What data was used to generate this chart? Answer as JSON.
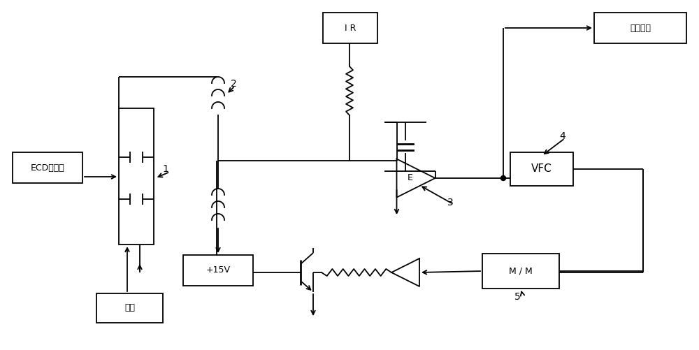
{
  "bg_color": "#ffffff",
  "line_color": "#000000",
  "figsize": [
    10.0,
    5.01
  ],
  "dpi": 100,
  "labels": {
    "ECD": "ECD检测器",
    "carrier": "载气",
    "IR": "I R",
    "plus15v": "+15V",
    "VFC": "VFC",
    "MM": "M / M",
    "output": "输出信号",
    "E": "E",
    "num1": "1",
    "num2": "2",
    "num3": "3",
    "num4": "4",
    "num5": "5"
  }
}
